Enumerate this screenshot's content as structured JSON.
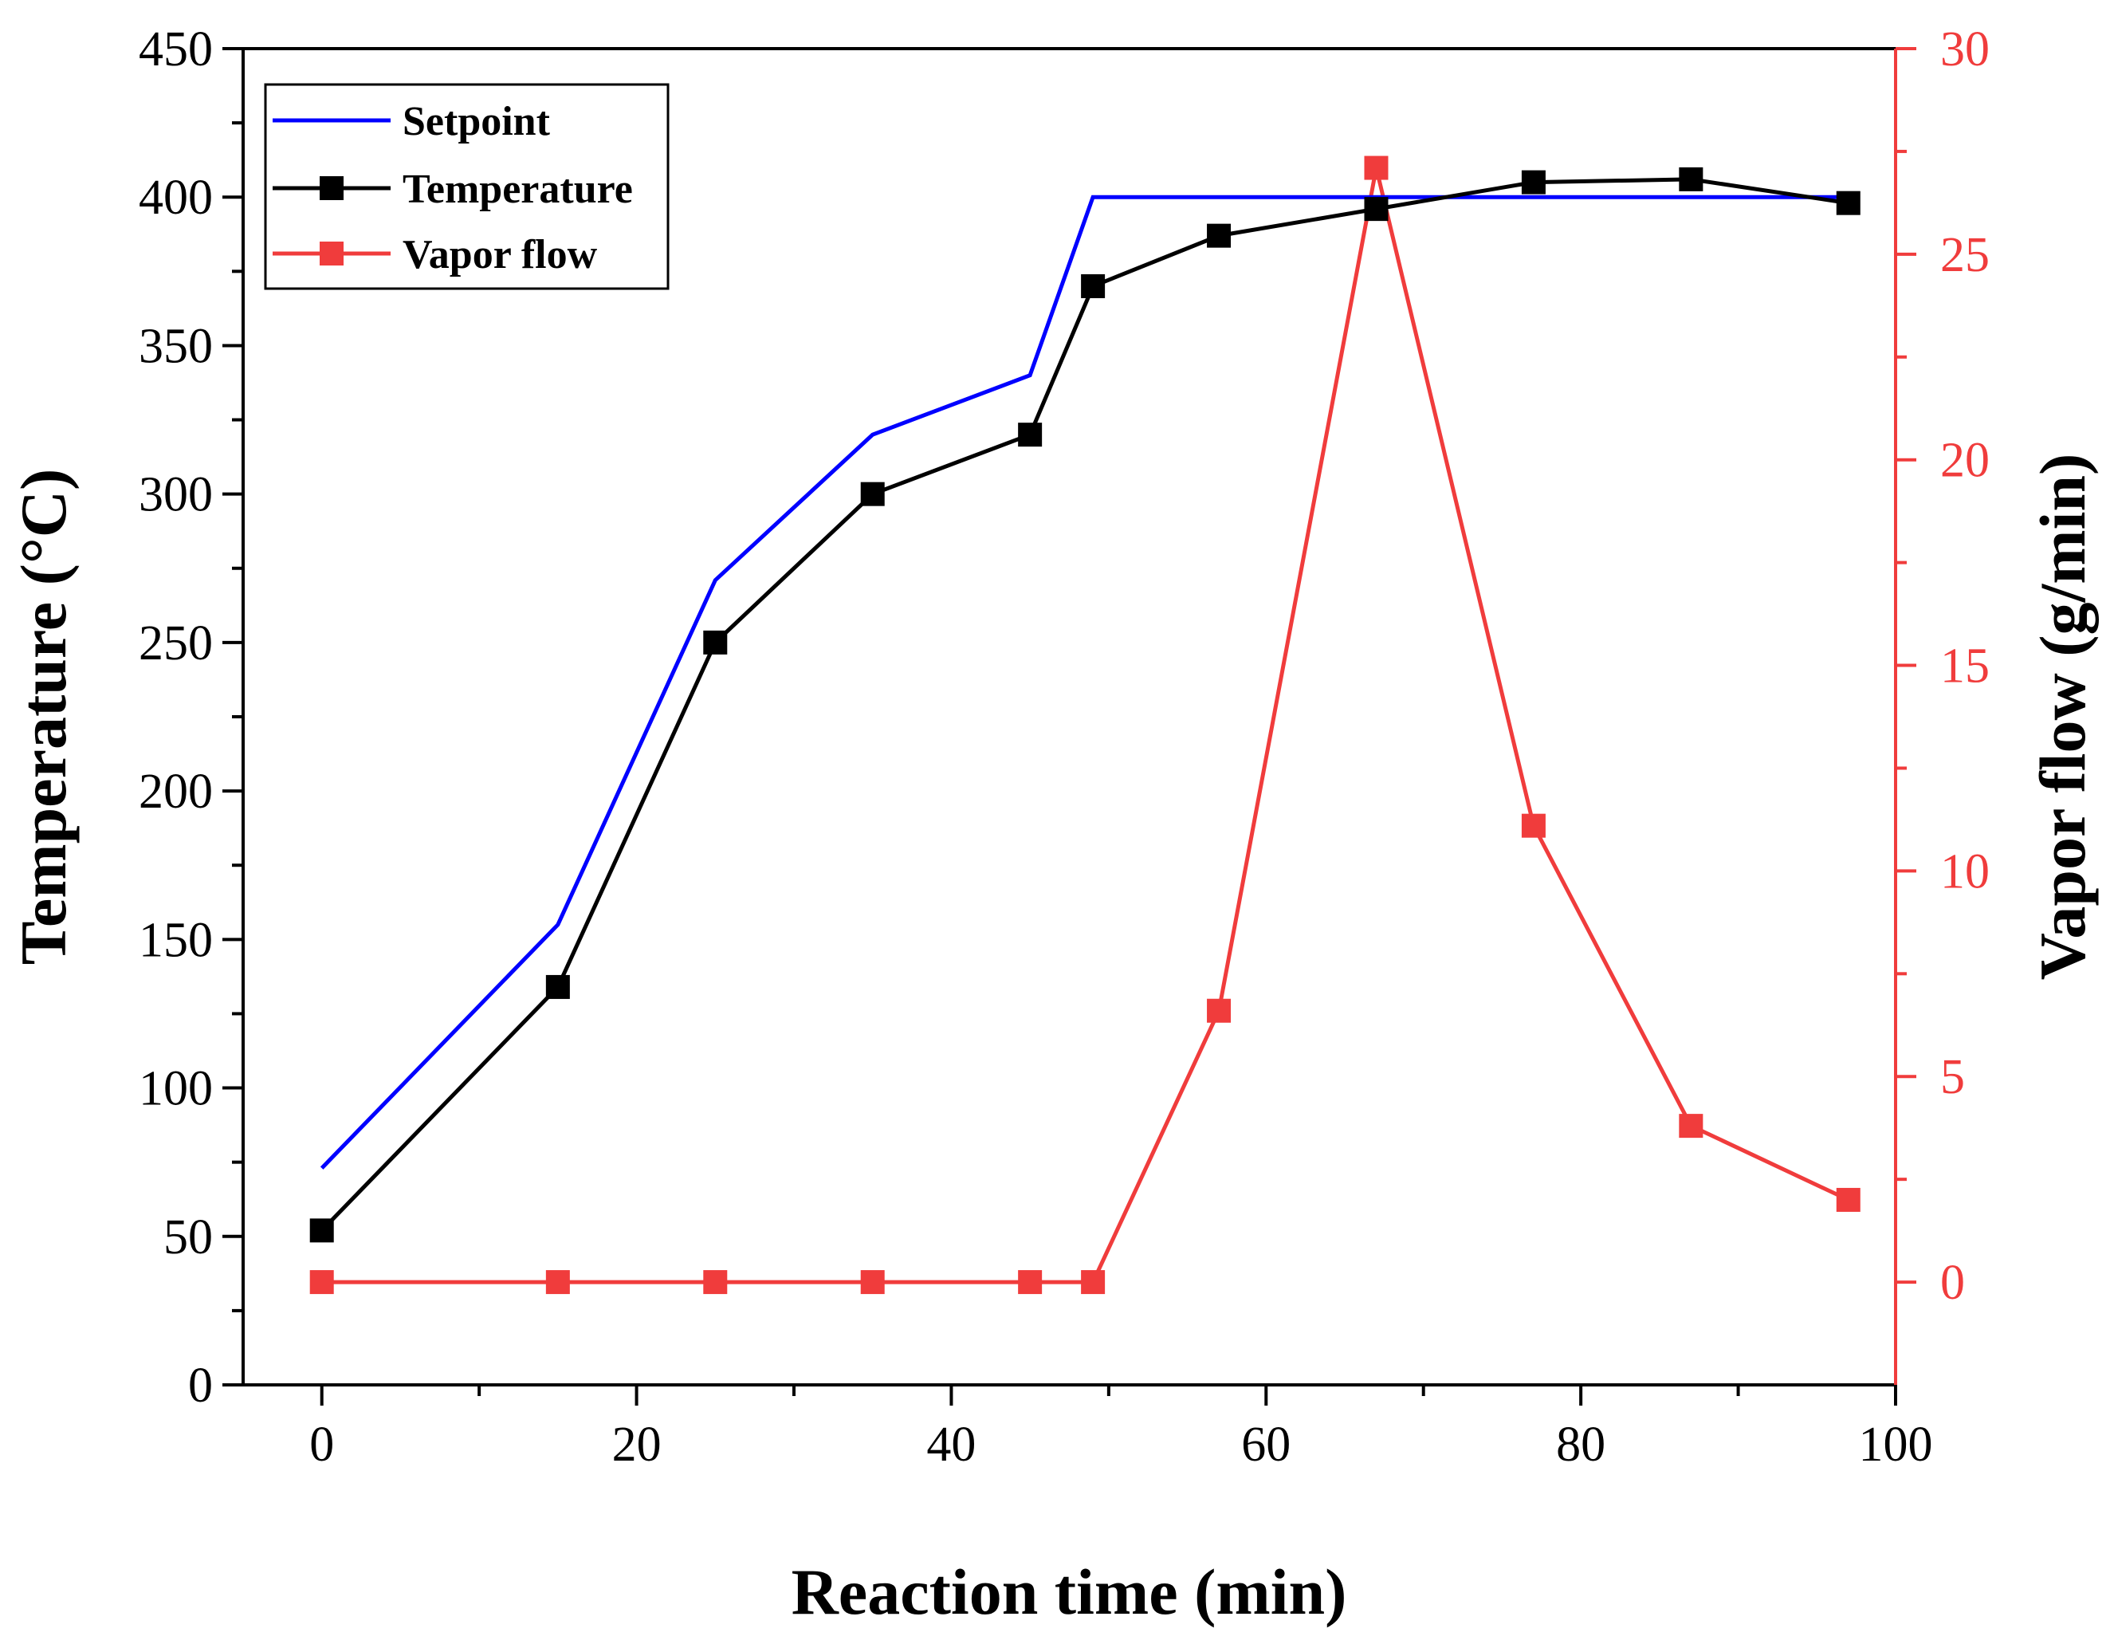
{
  "chart_data": {
    "type": "line",
    "title": "",
    "xlabel": "Reaction time (min)",
    "ylabel": "Temperature (°C)",
    "y2label": "Vapor flow (g/min)",
    "xlim": [
      -5,
      100
    ],
    "ylim": [
      0,
      450
    ],
    "y2lim": [
      -2.5,
      30
    ],
    "x_ticks": [
      "0",
      "20",
      "40",
      "60",
      "80",
      "100"
    ],
    "y_ticks": [
      "0",
      "50",
      "100",
      "150",
      "200",
      "250",
      "300",
      "350",
      "400",
      "450"
    ],
    "y2_ticks": [
      "0",
      "5",
      "10",
      "15",
      "20",
      "25",
      "30"
    ],
    "legend_position": "top-left",
    "colors": {
      "setpoint": "#0000ff",
      "temperature": "#000000",
      "vapor": "#f03c3c"
    },
    "series": [
      {
        "name": "Setpoint",
        "axis": "left",
        "marker": "none",
        "x": [
          0,
          15,
          25,
          35,
          45,
          49,
          97
        ],
        "values": [
          73,
          155,
          271,
          320,
          340,
          400,
          400
        ]
      },
      {
        "name": "Temperature",
        "axis": "left",
        "marker": "square",
        "x": [
          0,
          15,
          25,
          35,
          45,
          49,
          57,
          67,
          77,
          87,
          97
        ],
        "values": [
          52,
          134,
          250,
          300,
          320,
          370,
          387,
          396,
          405,
          406,
          398
        ]
      },
      {
        "name": "Vapor flow",
        "axis": "right",
        "marker": "square",
        "x": [
          0,
          15,
          25,
          35,
          45,
          49,
          57,
          67,
          77,
          87,
          97
        ],
        "values": [
          0,
          0,
          0,
          0,
          0,
          0,
          6.6,
          27.1,
          11.1,
          3.8,
          2.0
        ]
      }
    ]
  }
}
